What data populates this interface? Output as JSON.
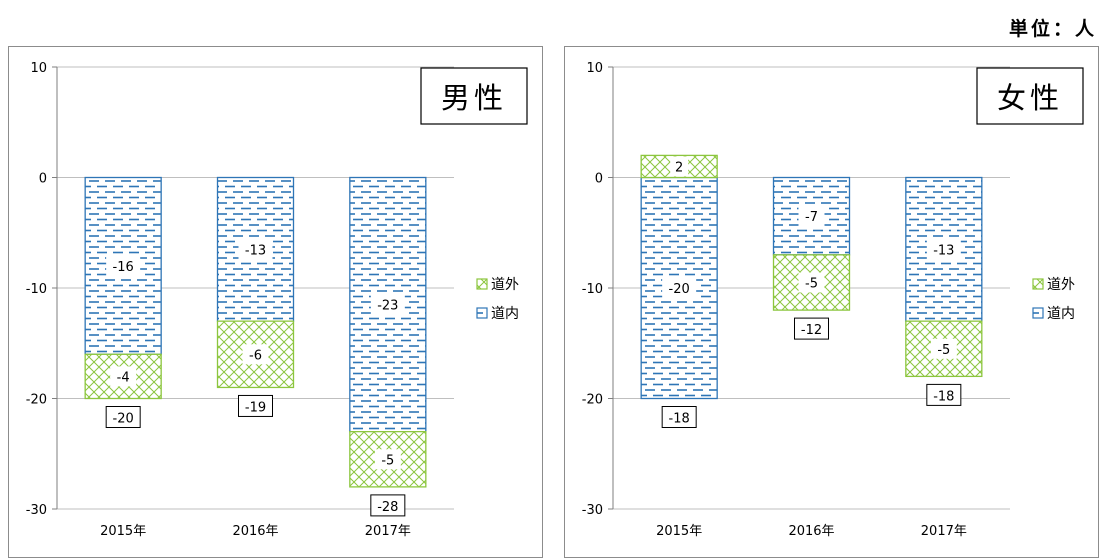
{
  "unit_label": "単位：人",
  "colors": {
    "outside": "#8cc63e",
    "inside": "#2e75b6",
    "grid": "#bfbfbf",
    "axis": "#7f7f7f"
  },
  "chart_data": [
    {
      "type": "bar",
      "stacked": true,
      "title": "男性",
      "categories": [
        "2015年",
        "2016年",
        "2017年"
      ],
      "ylim": [
        -30,
        10
      ],
      "yticks": [
        10,
        0,
        -10,
        -20,
        -30
      ],
      "series": [
        {
          "name": "道内",
          "values": [
            -16,
            -13,
            -23
          ],
          "pattern": "dashes"
        },
        {
          "name": "道外",
          "values": [
            -4,
            -6,
            -5
          ],
          "pattern": "crosshatch"
        }
      ],
      "totals": [
        -20,
        -19,
        -28
      ],
      "legend": "right",
      "grid": true
    },
    {
      "type": "bar",
      "stacked": true,
      "title": "女性",
      "categories": [
        "2015年",
        "2016年",
        "2017年"
      ],
      "ylim": [
        -30,
        10
      ],
      "yticks": [
        10,
        0,
        -10,
        -20,
        -30
      ],
      "series": [
        {
          "name": "道内",
          "values": [
            -20,
            -7,
            -13
          ],
          "pattern": "dashes"
        },
        {
          "name": "道外",
          "values": [
            2,
            -5,
            -5
          ],
          "pattern": "crosshatch"
        }
      ],
      "totals": [
        -18,
        -12,
        -18
      ],
      "legend": "right",
      "grid": true
    }
  ]
}
